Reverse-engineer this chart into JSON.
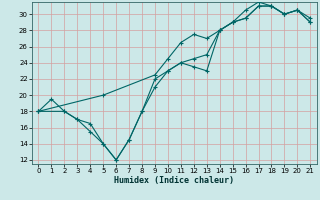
{
  "xlabel": "Humidex (Indice chaleur)",
  "xlim": [
    -0.5,
    21.5
  ],
  "ylim": [
    11.5,
    31.5
  ],
  "xticks": [
    0,
    1,
    2,
    3,
    4,
    5,
    6,
    7,
    8,
    9,
    10,
    11,
    12,
    13,
    14,
    15,
    16,
    17,
    18,
    19,
    20,
    21
  ],
  "yticks": [
    12,
    14,
    16,
    18,
    20,
    22,
    24,
    26,
    28,
    30
  ],
  "bg_color": "#cce8e8",
  "grid_color": "#d4a0a0",
  "line_color": "#006666",
  "line1_x": [
    0,
    1,
    2,
    3,
    4,
    5,
    6,
    7,
    8,
    9,
    10,
    11,
    12,
    13,
    14,
    15,
    16,
    17,
    18,
    19,
    20,
    21
  ],
  "line1_y": [
    18,
    19.5,
    18,
    17,
    15.5,
    14,
    12,
    14.5,
    18,
    21,
    23,
    24,
    23.5,
    23,
    28,
    29,
    29.5,
    31,
    31,
    30,
    30.5,
    29
  ],
  "line2_x": [
    0,
    2,
    3,
    4,
    5,
    6,
    7,
    8,
    9,
    10,
    11,
    12,
    13,
    14,
    15,
    16,
    17,
    18,
    19,
    20,
    21
  ],
  "line2_y": [
    18,
    18,
    17,
    16.5,
    14,
    12,
    14.5,
    18,
    22,
    23,
    24,
    24.5,
    25,
    28,
    29,
    29.5,
    31,
    31,
    30,
    30.5,
    29.5
  ],
  "line3_x": [
    0,
    5,
    9,
    10,
    11,
    12,
    13,
    14,
    15,
    16,
    17,
    18,
    19,
    20,
    21
  ],
  "line3_y": [
    18,
    20,
    22.5,
    24.5,
    26.5,
    27.5,
    27,
    28,
    29,
    30.5,
    31.5,
    31,
    30,
    30.5,
    29
  ]
}
